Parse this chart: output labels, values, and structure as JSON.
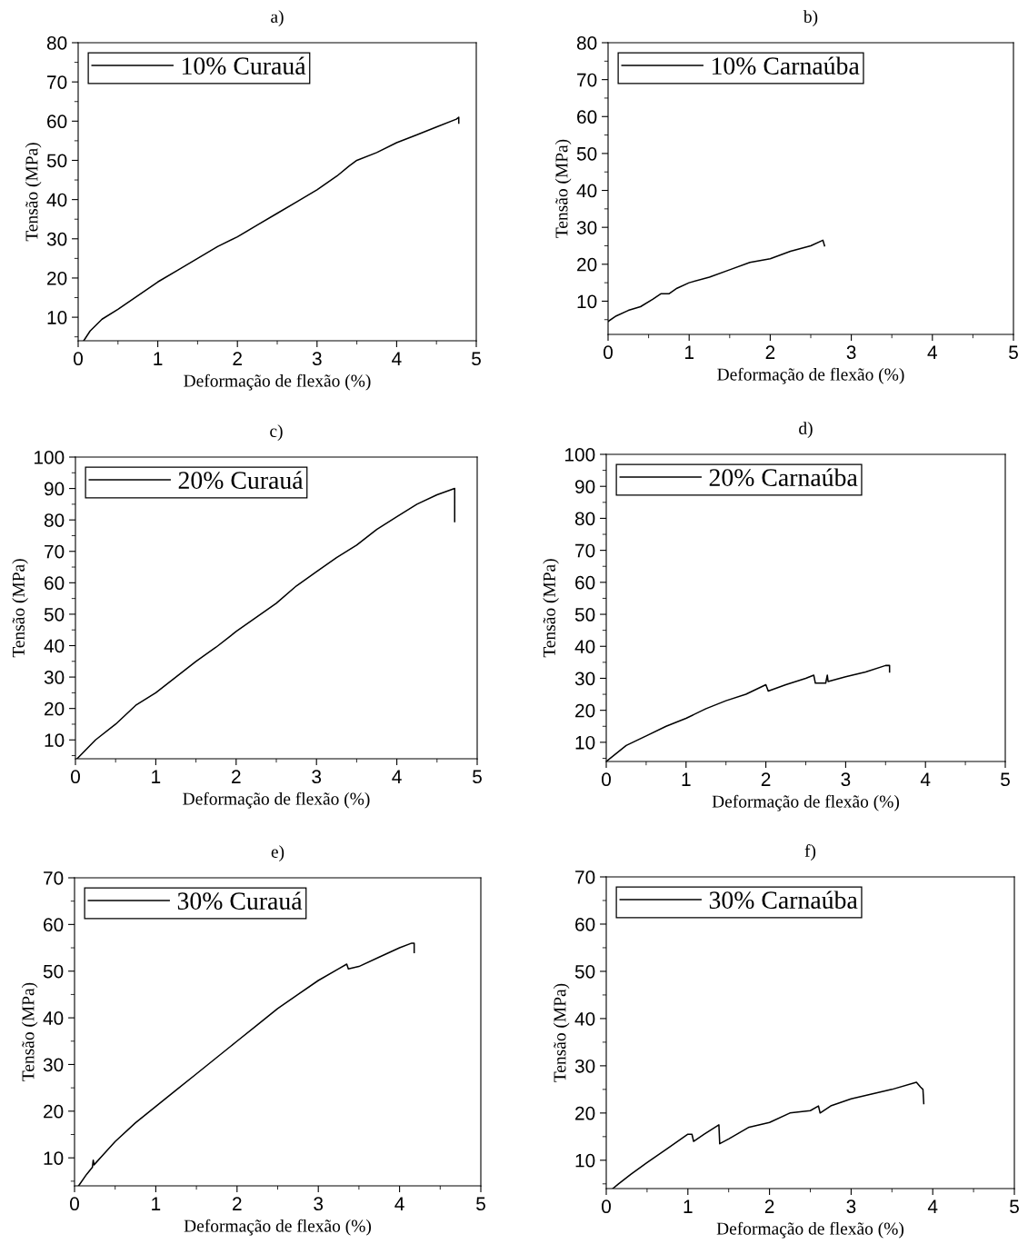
{
  "chart_data": [
    {
      "type": "line",
      "title": "a)",
      "xlabel": "Deformação de flexão (%)",
      "ylabel": "Tensão (MPa)",
      "xlim": [
        0,
        5
      ],
      "xticks": [
        0,
        1,
        2,
        3,
        4,
        5
      ],
      "ylim": [
        4,
        80
      ],
      "yticks": [
        10,
        20,
        30,
        40,
        50,
        60,
        70,
        80
      ],
      "grid": false,
      "legend": "top left",
      "series": [
        {
          "name": "10% Curauá",
          "color": "#000000",
          "x": [
            0.07,
            0.15,
            0.3,
            0.5,
            0.75,
            1,
            1.25,
            1.5,
            1.75,
            2,
            2.25,
            2.5,
            2.75,
            3,
            3.25,
            3.4,
            3.5,
            3.75,
            4,
            4.25,
            4.5,
            4.75,
            4.78,
            4.78
          ],
          "values": [
            4,
            6.5,
            9.5,
            12,
            15.5,
            19,
            22,
            25,
            28,
            30.5,
            33.5,
            36.5,
            39.5,
            42.5,
            46,
            48.5,
            50,
            52,
            54.5,
            56.5,
            58.5,
            60.5,
            61,
            59.5
          ]
        }
      ]
    },
    {
      "type": "line",
      "title": "b)",
      "xlabel": "Deformação de flexão (%)",
      "ylabel": "Tensão (MPa)",
      "xlim": [
        0,
        5
      ],
      "xticks": [
        0,
        1,
        2,
        3,
        4,
        5
      ],
      "ylim": [
        1,
        80
      ],
      "yticks": [
        10,
        20,
        30,
        40,
        50,
        60,
        70,
        80
      ],
      "grid": false,
      "legend": "top left",
      "series": [
        {
          "name": "10% Carnaúba",
          "color": "#000000",
          "x": [
            0,
            0.1,
            0.25,
            0.4,
            0.55,
            0.65,
            0.75,
            0.85,
            1,
            1.25,
            1.5,
            1.75,
            2,
            2.25,
            2.5,
            2.65,
            2.67
          ],
          "values": [
            4.5,
            6,
            7.5,
            8.5,
            10.5,
            12,
            12,
            13.5,
            15,
            16.5,
            18.5,
            20.5,
            21.5,
            23.5,
            25,
            26.5,
            25
          ]
        }
      ]
    },
    {
      "type": "line",
      "title": "c)",
      "xlabel": "Deformação de flexão (%)",
      "ylabel": "Tensão (MPa)",
      "xlim": [
        0,
        5
      ],
      "xticks": [
        0,
        1,
        2,
        3,
        4,
        5
      ],
      "ylim": [
        4,
        100
      ],
      "yticks": [
        10,
        20,
        30,
        40,
        50,
        60,
        70,
        80,
        90,
        100
      ],
      "grid": false,
      "legend": "top left",
      "series": [
        {
          "name": "20% Curauá",
          "color": "#000000",
          "x": [
            0.02,
            0.25,
            0.5,
            0.75,
            1,
            1.25,
            1.5,
            1.75,
            2,
            2.25,
            2.5,
            2.75,
            3,
            3.25,
            3.5,
            3.75,
            4,
            4.25,
            4.5,
            4.72,
            4.72
          ],
          "values": [
            4,
            10,
            15,
            21,
            25,
            30,
            35,
            39.5,
            44.5,
            49,
            53.5,
            59,
            63.5,
            68,
            72,
            77,
            81,
            85,
            88,
            90,
            79.5
          ]
        }
      ]
    },
    {
      "type": "line",
      "title": "d)",
      "xlabel": "Deformação de flexão (%)",
      "ylabel": "Tensão (MPa)",
      "xlim": [
        0,
        5
      ],
      "xticks": [
        0,
        1,
        2,
        3,
        4,
        5
      ],
      "ylim": [
        4,
        100
      ],
      "yticks": [
        10,
        20,
        30,
        40,
        50,
        60,
        70,
        80,
        90,
        100
      ],
      "grid": false,
      "legend": "top left",
      "series": [
        {
          "name": "20% Carnaúba",
          "color": "#000000",
          "x": [
            0,
            0.25,
            0.5,
            0.75,
            1,
            1.25,
            1.5,
            1.75,
            2,
            2.03,
            2.25,
            2.5,
            2.6,
            2.62,
            2.75,
            2.77,
            2.78,
            3,
            3.25,
            3.5,
            3.55,
            3.55
          ],
          "values": [
            4,
            9,
            12,
            15,
            17.5,
            20.5,
            23,
            25,
            28,
            26,
            28,
            30,
            31,
            28.5,
            28.5,
            31,
            29,
            30.5,
            32,
            34,
            34,
            32
          ]
        }
      ]
    },
    {
      "type": "line",
      "title": "e)",
      "xlabel": "Deformação de flexão (%)",
      "ylabel": "Tensão (MPa)",
      "xlim": [
        0,
        5
      ],
      "xticks": [
        0,
        1,
        2,
        3,
        4,
        5
      ],
      "ylim": [
        4,
        70
      ],
      "yticks": [
        10,
        20,
        30,
        40,
        50,
        60,
        70
      ],
      "grid": false,
      "legend": "top left",
      "series": [
        {
          "name": "30% Curauá",
          "color": "#000000",
          "x": [
            0.05,
            0.15,
            0.22,
            0.23,
            0.24,
            0.5,
            0.75,
            1,
            1.25,
            1.5,
            1.75,
            2,
            2.25,
            2.5,
            2.75,
            3,
            3.25,
            3.35,
            3.37,
            3.5,
            3.75,
            4,
            4.15,
            4.18,
            4.18
          ],
          "values": [
            4,
            6.5,
            8,
            9.5,
            8.5,
            13.5,
            17.5,
            21,
            24.5,
            28,
            31.5,
            35,
            38.5,
            42,
            45,
            48,
            50.5,
            51.5,
            50.5,
            51,
            53,
            55,
            56,
            56,
            54
          ]
        }
      ]
    },
    {
      "type": "line",
      "title": "f)",
      "xlabel": "Deformação de flexão (%)",
      "ylabel": "Tensão (MPa)",
      "xlim": [
        0,
        5
      ],
      "xticks": [
        0,
        1,
        2,
        3,
        4,
        5
      ],
      "ylim": [
        4,
        70
      ],
      "yticks": [
        10,
        20,
        30,
        40,
        50,
        60,
        70
      ],
      "grid": false,
      "legend": "top left",
      "series": [
        {
          "name": "30% Carnaúba",
          "color": "#000000",
          "x": [
            0.08,
            0.15,
            0.3,
            0.5,
            0.75,
            1,
            1.05,
            1.07,
            1.2,
            1.38,
            1.39,
            1.5,
            1.75,
            2,
            2.25,
            2.5,
            2.6,
            2.62,
            2.75,
            3,
            3.25,
            3.5,
            3.8,
            3.85,
            3.88,
            3.89
          ],
          "values": [
            4,
            5,
            7,
            9.5,
            12.5,
            15.5,
            15.5,
            14,
            15.5,
            17.5,
            13.5,
            14.5,
            17,
            18,
            20,
            20.5,
            21.5,
            20,
            21.5,
            23,
            24,
            25,
            26.5,
            25.5,
            25,
            22
          ]
        }
      ]
    }
  ]
}
